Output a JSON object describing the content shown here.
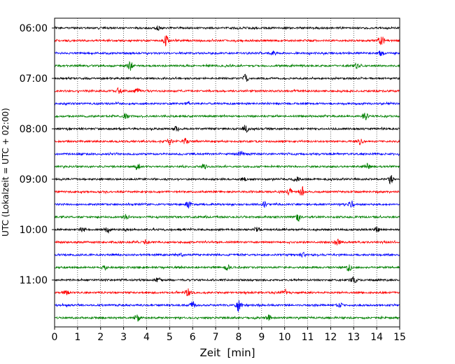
{
  "chart_data": {
    "type": "line",
    "subtype": "helicorder",
    "xlabel": "Zeit  [min]",
    "ylabel": "UTC (Lokalzeit = UTC + 02:00)",
    "xlim": [
      0,
      15
    ],
    "x_ticks": [
      0,
      1,
      2,
      3,
      4,
      5,
      6,
      7,
      8,
      9,
      10,
      11,
      12,
      13,
      14,
      15
    ],
    "x_grid": "dotted vertical lines at each minute",
    "y_tick_labels": [
      "06:00",
      "07:00",
      "08:00",
      "09:00",
      "10:00",
      "11:00"
    ],
    "trace_interval_minutes": 15,
    "color_cycle": [
      "#000000",
      "#ff0000",
      "#0000ff",
      "#008000"
    ],
    "traces": [
      {
        "start": "06:00",
        "color": "#000000",
        "events": [
          {
            "t": 4.5,
            "amp": 3
          }
        ]
      },
      {
        "start": "06:15",
        "color": "#ff0000",
        "events": [
          {
            "t": 4.85,
            "amp": 7
          },
          {
            "t": 14.2,
            "amp": 9
          }
        ]
      },
      {
        "start": "06:30",
        "color": "#0000ff",
        "events": [
          {
            "t": 9.5,
            "amp": 5
          },
          {
            "t": 14.2,
            "amp": 4
          }
        ]
      },
      {
        "start": "06:45",
        "color": "#008000",
        "events": [
          {
            "t": 3.3,
            "amp": 6
          },
          {
            "t": 13.1,
            "amp": 4
          }
        ]
      },
      {
        "start": "07:00",
        "color": "#000000",
        "events": [
          {
            "t": 8.3,
            "amp": 6
          }
        ]
      },
      {
        "start": "07:15",
        "color": "#ff0000",
        "events": [
          {
            "t": 2.8,
            "amp": 4
          },
          {
            "t": 3.6,
            "amp": 4
          }
        ]
      },
      {
        "start": "07:30",
        "color": "#0000ff",
        "events": [
          {
            "t": 5.8,
            "amp": 3
          }
        ]
      },
      {
        "start": "07:45",
        "color": "#008000",
        "events": [
          {
            "t": 3.1,
            "amp": 4
          },
          {
            "t": 13.5,
            "amp": 5
          }
        ]
      },
      {
        "start": "08:00",
        "color": "#000000",
        "events": [
          {
            "t": 5.3,
            "amp": 4
          },
          {
            "t": 8.3,
            "amp": 6
          }
        ]
      },
      {
        "start": "08:15",
        "color": "#ff0000",
        "events": [
          {
            "t": 5.0,
            "amp": 6
          },
          {
            "t": 5.7,
            "amp": 4
          },
          {
            "t": 13.3,
            "amp": 4
          }
        ]
      },
      {
        "start": "08:30",
        "color": "#0000ff",
        "events": [
          {
            "t": 8.1,
            "amp": 4
          }
        ]
      },
      {
        "start": "08:45",
        "color": "#008000",
        "events": [
          {
            "t": 3.6,
            "amp": 4
          },
          {
            "t": 6.5,
            "amp": 4
          },
          {
            "t": 13.6,
            "amp": 4
          }
        ]
      },
      {
        "start": "09:00",
        "color": "#000000",
        "events": [
          {
            "t": 8.2,
            "amp": 3
          },
          {
            "t": 10.5,
            "amp": 4
          },
          {
            "t": 14.6,
            "amp": 6
          }
        ]
      },
      {
        "start": "09:15",
        "color": "#ff0000",
        "events": [
          {
            "t": 10.2,
            "amp": 5
          },
          {
            "t": 10.75,
            "amp": 7
          }
        ]
      },
      {
        "start": "09:30",
        "color": "#0000ff",
        "events": [
          {
            "t": 5.8,
            "amp": 5
          },
          {
            "t": 9.1,
            "amp": 4
          },
          {
            "t": 12.9,
            "amp": 5
          }
        ]
      },
      {
        "start": "09:45",
        "color": "#008000",
        "events": [
          {
            "t": 3.1,
            "amp": 3
          },
          {
            "t": 10.6,
            "amp": 5
          }
        ]
      },
      {
        "start": "10:00",
        "color": "#000000",
        "events": [
          {
            "t": 1.2,
            "amp": 4
          },
          {
            "t": 2.3,
            "amp": 4
          },
          {
            "t": 8.8,
            "amp": 4
          },
          {
            "t": 14.0,
            "amp": 3
          }
        ]
      },
      {
        "start": "10:15",
        "color": "#ff0000",
        "events": [
          {
            "t": 4.0,
            "amp": 3
          },
          {
            "t": 12.3,
            "amp": 5
          }
        ]
      },
      {
        "start": "10:30",
        "color": "#0000ff",
        "events": [
          {
            "t": 5.5,
            "amp": 3
          },
          {
            "t": 10.8,
            "amp": 3
          }
        ]
      },
      {
        "start": "10:45",
        "color": "#008000",
        "events": [
          {
            "t": 2.2,
            "amp": 3
          },
          {
            "t": 7.5,
            "amp": 4
          },
          {
            "t": 12.8,
            "amp": 4
          }
        ]
      },
      {
        "start": "11:00",
        "color": "#000000",
        "events": [
          {
            "t": 4.5,
            "amp": 4
          },
          {
            "t": 13.0,
            "amp": 5
          }
        ]
      },
      {
        "start": "11:15",
        "color": "#ff0000",
        "events": [
          {
            "t": 0.5,
            "amp": 3
          },
          {
            "t": 5.8,
            "amp": 5
          },
          {
            "t": 10.0,
            "amp": 5
          }
        ]
      },
      {
        "start": "11:30",
        "color": "#0000ff",
        "events": [
          {
            "t": 6.0,
            "amp": 5
          },
          {
            "t": 8.0,
            "amp": 10
          },
          {
            "t": 12.4,
            "amp": 3
          }
        ]
      },
      {
        "start": "11:45",
        "color": "#008000",
        "events": [
          {
            "t": 3.6,
            "amp": 5
          },
          {
            "t": 9.3,
            "amp": 4
          }
        ]
      }
    ]
  }
}
